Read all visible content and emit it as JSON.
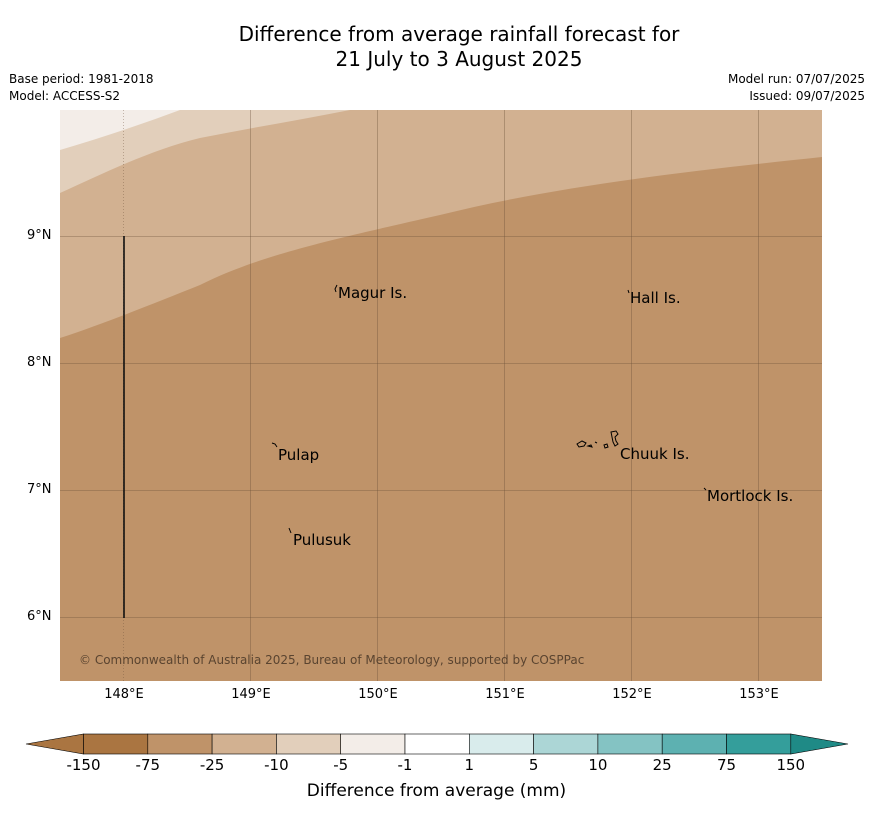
{
  "title": {
    "line1": "Difference from average rainfall forecast for",
    "line2": "21 July to 3 August 2025"
  },
  "meta": {
    "base_period": "Base period: 1981-2018",
    "model": "Model: ACCESS-S2",
    "model_run": "Model run: 07/07/2025",
    "issued": "Issued: 09/07/2025"
  },
  "axes": {
    "y_ticks": [
      "9°N",
      "8°N",
      "7°N",
      "6°N"
    ],
    "x_ticks": [
      "148°E",
      "149°E",
      "150°E",
      "151°E",
      "152°E",
      "153°E"
    ]
  },
  "places": [
    "Magur Is.",
    "Hall Is.",
    "Pulap",
    "Chuuk Is.",
    "Mortlock Is.",
    "Pulusuk"
  ],
  "copyright": "© Commonwealth of Australia 2025, Bureau of Meteorology, supported by COSPPac",
  "legend": {
    "labels": [
      "-150",
      "-75",
      "-25",
      "-10",
      "-5",
      "-1",
      "1",
      "5",
      "10",
      "25",
      "75",
      "150"
    ],
    "colors": [
      "#aa7541",
      "#bf9369",
      "#d2b191",
      "#e2cfbb",
      "#f3ede8",
      "#ffffff",
      "#d9ecec",
      "#acd6d6",
      "#84c3c3",
      "#5db1b1",
      "#349e9b"
    ],
    "title": "Difference from average (mm)"
  }
}
